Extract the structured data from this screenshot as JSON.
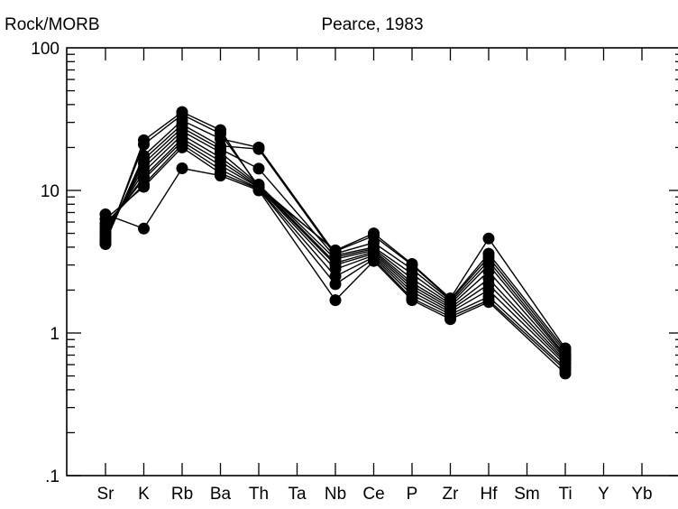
{
  "chart_data": {
    "type": "line",
    "title": "Pearce, 1983",
    "ylabel": "Rock/MORB",
    "xlabel": "",
    "yscale": "log",
    "ylim": [
      0.1,
      100
    ],
    "yticks": [
      {
        "value": 100,
        "label": "100"
      },
      {
        "value": 10,
        "label": "10"
      },
      {
        "value": 1,
        "label": "1"
      },
      {
        "value": 0.1,
        "label": ".1"
      }
    ],
    "categories": [
      "Sr",
      "K",
      "Rb",
      "Ba",
      "Th",
      "Ta",
      "Nb",
      "Ce",
      "P",
      "Zr",
      "Hf",
      "Sm",
      "Ti",
      "Y",
      "Yb"
    ],
    "grid": false,
    "legend": "none",
    "marker": "filled-circle",
    "color": "#000000",
    "series": [
      {
        "values": [
          6.8,
          5.4,
          14.3,
          12.7,
          10.0,
          null,
          1.7,
          3.2,
          1.7,
          1.25,
          1.65,
          null,
          0.52,
          null,
          null
        ]
      },
      {
        "values": [
          6.3,
          10.6,
          20.0,
          13.2,
          10.2,
          null,
          2.2,
          3.3,
          1.75,
          1.3,
          1.7,
          null,
          0.55,
          null,
          null
        ]
      },
      {
        "values": [
          5.9,
          11.0,
          21.0,
          14.0,
          10.3,
          null,
          2.5,
          3.4,
          1.85,
          1.35,
          1.8,
          null,
          0.57,
          null,
          null
        ]
      },
      {
        "values": [
          5.6,
          12.0,
          22.0,
          15.0,
          10.5,
          null,
          2.8,
          3.5,
          1.95,
          1.4,
          2.0,
          null,
          0.6,
          null,
          null
        ]
      },
      {
        "values": [
          5.4,
          12.5,
          23.0,
          16.0,
          10.6,
          null,
          3.0,
          3.6,
          2.05,
          1.45,
          2.2,
          null,
          0.62,
          null,
          null
        ]
      },
      {
        "values": [
          5.2,
          13.5,
          24.5,
          17.0,
          10.8,
          null,
          3.1,
          3.7,
          2.15,
          1.5,
          2.4,
          null,
          0.64,
          null,
          null
        ]
      },
      {
        "values": [
          5.0,
          14.5,
          26.0,
          18.5,
          11.0,
          null,
          3.3,
          3.8,
          2.25,
          1.55,
          2.7,
          null,
          0.66,
          null,
          null
        ]
      },
      {
        "values": [
          4.8,
          15.5,
          27.5,
          19.5,
          14.2,
          null,
          3.4,
          3.9,
          2.4,
          1.6,
          3.0,
          null,
          0.68,
          null,
          null
        ]
      },
      {
        "values": [
          4.6,
          16.5,
          29.0,
          20.5,
          19.5,
          null,
          3.5,
          4.0,
          2.6,
          1.65,
          3.2,
          null,
          0.7,
          null,
          null
        ]
      },
      {
        "values": [
          4.4,
          17.5,
          31.0,
          23.0,
          20.0,
          null,
          3.6,
          4.3,
          2.8,
          1.7,
          3.4,
          null,
          0.73,
          null,
          null
        ]
      },
      {
        "values": [
          4.3,
          21.0,
          34.0,
          25.0,
          10.7,
          null,
          3.75,
          4.8,
          3.0,
          1.72,
          3.6,
          null,
          0.76,
          null,
          null
        ]
      },
      {
        "values": [
          4.2,
          22.5,
          35.5,
          26.5,
          10.4,
          null,
          3.8,
          5.0,
          3.05,
          1.75,
          4.6,
          null,
          0.78,
          null,
          null
        ]
      }
    ]
  }
}
